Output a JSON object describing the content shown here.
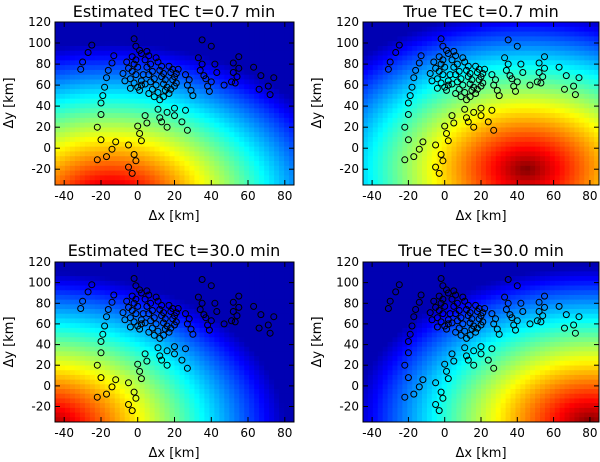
{
  "chart_data": [
    {
      "type": "heatmap",
      "title": "Estimated TEC t=0.7 min",
      "xlabel": "Δx [km]",
      "ylabel": "Δy [km]",
      "xlim": [
        -45,
        85
      ],
      "ylim": [
        -35,
        120
      ],
      "xticks": [
        -40,
        -20,
        0,
        20,
        40,
        60,
        80
      ],
      "yticks": [
        -20,
        0,
        20,
        40,
        60,
        80,
        100,
        120
      ],
      "field": {
        "center": [
          -15,
          -50
        ],
        "cold_corner": "top-right",
        "description_values": [
          0.0,
          1.0
        ]
      }
    },
    {
      "type": "heatmap",
      "title": "True TEC t=0.7 min",
      "xlabel": "Δx [km]",
      "ylabel": "Δy [km]",
      "xlim": [
        -45,
        85
      ],
      "ylim": [
        -35,
        120
      ],
      "xticks": [
        -40,
        -20,
        0,
        20,
        40,
        60,
        80
      ],
      "yticks": [
        -20,
        0,
        20,
        40,
        60,
        80,
        100,
        120
      ],
      "field": {
        "center": [
          45,
          -20
        ],
        "cold_corner": "top-right",
        "description_values": [
          0.0,
          1.0
        ]
      }
    },
    {
      "type": "heatmap",
      "title": "Estimated TEC t=30.0 min",
      "xlabel": "Δx [km]",
      "ylabel": "Δy [km]",
      "xlim": [
        -45,
        85
      ],
      "ylim": [
        -35,
        120
      ],
      "xticks": [
        -40,
        -20,
        0,
        20,
        40,
        60,
        80
      ],
      "yticks": [
        -20,
        0,
        20,
        40,
        60,
        80,
        100,
        120
      ],
      "field": {
        "center": [
          -50,
          -40
        ],
        "cold_corner": "top-right",
        "description_values": [
          0.0,
          1.0
        ]
      }
    },
    {
      "type": "heatmap",
      "title": "True TEC t=30.0 min",
      "xlabel": "Δx [km]",
      "ylabel": "Δy [km]",
      "xlim": [
        -45,
        85
      ],
      "ylim": [
        -35,
        120
      ],
      "xticks": [
        -40,
        -20,
        0,
        20,
        40,
        60,
        80
      ],
      "yticks": [
        -20,
        0,
        20,
        40,
        60,
        80,
        100,
        120
      ],
      "field": {
        "center": [
          80,
          -35
        ],
        "cold_corner": "top-right",
        "description_values": [
          0.0,
          1.0
        ]
      }
    }
  ],
  "stations": [
    [
      -2,
      104
    ],
    [
      -1,
      97
    ],
    [
      1,
      93
    ],
    [
      2,
      90
    ],
    [
      -3,
      87
    ],
    [
      -1,
      84
    ],
    [
      -2,
      80
    ],
    [
      0,
      77
    ],
    [
      -3,
      73
    ],
    [
      -1,
      70
    ],
    [
      -4,
      66
    ],
    [
      -2,
      62
    ],
    [
      0,
      58
    ],
    [
      2,
      60
    ],
    [
      -6,
      82
    ],
    [
      -5,
      76
    ],
    [
      -8,
      71
    ],
    [
      -7,
      64
    ],
    [
      -4,
      57
    ],
    [
      5,
      92
    ],
    [
      6,
      88
    ],
    [
      4,
      84
    ],
    [
      7,
      80
    ],
    [
      5,
      77
    ],
    [
      8,
      73
    ],
    [
      6,
      70
    ],
    [
      9,
      66
    ],
    [
      7,
      63
    ],
    [
      10,
      60
    ],
    [
      8,
      56
    ],
    [
      11,
      53
    ],
    [
      6,
      52
    ],
    [
      9,
      49
    ],
    [
      12,
      46
    ],
    [
      10,
      86
    ],
    [
      11,
      82
    ],
    [
      13,
      78
    ],
    [
      12,
      74
    ],
    [
      14,
      71
    ],
    [
      13,
      68
    ],
    [
      15,
      65
    ],
    [
      14,
      61
    ],
    [
      16,
      58
    ],
    [
      15,
      55
    ],
    [
      17,
      52
    ],
    [
      14,
      49
    ],
    [
      17,
      78
    ],
    [
      19,
      75
    ],
    [
      18,
      72
    ],
    [
      20,
      68
    ],
    [
      19,
      65
    ],
    [
      21,
      62
    ],
    [
      20,
      59
    ],
    [
      18,
      56
    ],
    [
      22,
      75
    ],
    [
      21,
      71
    ],
    [
      3,
      70
    ],
    [
      2,
      64
    ],
    [
      4,
      61
    ],
    [
      1,
      55
    ],
    [
      -13,
      88
    ],
    [
      -14,
      81
    ],
    [
      -16,
      74
    ],
    [
      -17,
      67
    ],
    [
      -18,
      58
    ],
    [
      -19,
      50
    ],
    [
      -20,
      43
    ],
    [
      -25,
      98
    ],
    [
      -27,
      91
    ],
    [
      -30,
      82
    ],
    [
      -31,
      75
    ],
    [
      26,
      70
    ],
    [
      28,
      65
    ],
    [
      27,
      60
    ],
    [
      29,
      55
    ],
    [
      30,
      50
    ],
    [
      33,
      86
    ],
    [
      35,
      80
    ],
    [
      34,
      74
    ],
    [
      36,
      69
    ],
    [
      37,
      66
    ],
    [
      38,
      59
    ],
    [
      39,
      54
    ],
    [
      35,
      103
    ],
    [
      40,
      97
    ],
    [
      40,
      63
    ],
    [
      42,
      80
    ],
    [
      43,
      72
    ],
    [
      47,
      60
    ],
    [
      53,
      62
    ],
    [
      55,
      87
    ],
    [
      52,
      81
    ],
    [
      55,
      76
    ],
    [
      52,
      72
    ],
    [
      54,
      68
    ],
    [
      51,
      63
    ],
    [
      63,
      77
    ],
    [
      67,
      69
    ],
    [
      71,
      59
    ],
    [
      72,
      51
    ],
    [
      74,
      67
    ],
    [
      66,
      56
    ],
    [
      -20,
      32
    ],
    [
      -22,
      20
    ],
    [
      -20,
      8
    ],
    [
      -22,
      -11
    ],
    [
      -12,
      6
    ],
    [
      -14,
      -1
    ],
    [
      -17,
      -8
    ],
    [
      -5,
      -18
    ],
    [
      -3,
      -24
    ],
    [
      -5,
      3
    ],
    [
      -2,
      -6
    ],
    [
      -1,
      -12
    ],
    [
      0,
      21
    ],
    [
      1,
      14
    ],
    [
      2,
      7
    ],
    [
      4,
      31
    ],
    [
      5,
      24
    ],
    [
      13,
      25
    ],
    [
      16,
      20
    ],
    [
      16,
      34
    ],
    [
      11,
      37
    ],
    [
      12,
      29
    ],
    [
      20,
      38
    ],
    [
      20,
      31
    ],
    [
      24,
      25
    ],
    [
      26,
      36
    ],
    [
      27,
      17
    ]
  ]
}
